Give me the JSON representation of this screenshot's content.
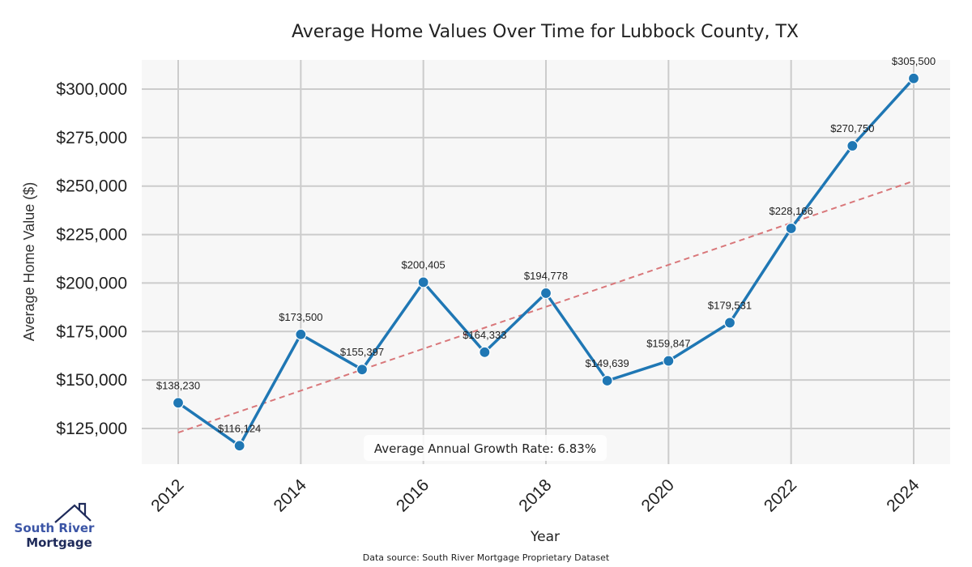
{
  "chart_data": {
    "type": "line",
    "title": "Average Home Values Over Time for Lubbock County, TX",
    "xlabel": "Year",
    "ylabel": "Average Home Value ($)",
    "x": [
      2012,
      2013,
      2014,
      2015,
      2016,
      2017,
      2018,
      2019,
      2020,
      2021,
      2022,
      2023,
      2024
    ],
    "series": [
      {
        "name": "Average Home Value",
        "color": "#1f77b4",
        "values": [
          138230,
          116124,
          173500,
          155397,
          200405,
          164333,
          194778,
          149639,
          159847,
          179531,
          228166,
          270750,
          305500
        ],
        "labels": [
          "$138,230",
          "$116,124",
          "$173,500",
          "$155,397",
          "$200,405",
          "$164,333",
          "$194,778",
          "$149,639",
          "$159,847",
          "$179,531",
          "$228,166",
          "$270,750",
          "$305,500"
        ]
      },
      {
        "name": "Trend",
        "color": "#d9777a",
        "style": "dashed",
        "x": [
          2012,
          2024
        ],
        "values": [
          122900,
          252600
        ]
      }
    ],
    "xticks": [
      2012,
      2014,
      2016,
      2018,
      2020,
      2022,
      2024
    ],
    "xtick_labels": [
      "2012",
      "2014",
      "2016",
      "2018",
      "2020",
      "2022",
      "2024"
    ],
    "yticks": [
      125000,
      150000,
      175000,
      200000,
      225000,
      250000,
      275000,
      300000
    ],
    "ytick_labels": [
      "$125,000",
      "$150,000",
      "$175,000",
      "$200,000",
      "$225,000",
      "$250,000",
      "$275,000",
      "$300,000"
    ],
    "xlim": [
      2011.7,
      2024.3
    ],
    "ylim": [
      107800,
      316000
    ],
    "grid": true,
    "annotation": "Average Annual Growth Rate: 6.83%",
    "background": "#f7f7f7",
    "grid_color": "#cccccc"
  },
  "footer": {
    "source": "Data source: South River Mortgage Proprietary Dataset"
  },
  "logo": {
    "line1": "South River",
    "line2": "Mortgage"
  }
}
